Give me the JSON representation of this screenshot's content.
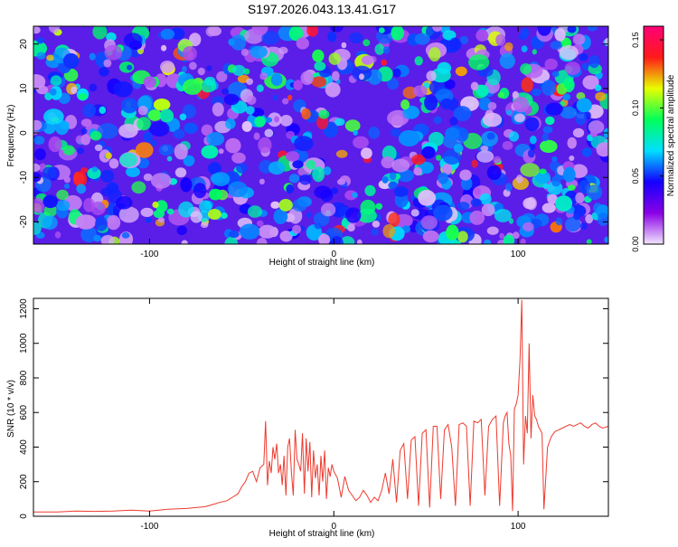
{
  "title": "S197.2026.043.13.41.G17",
  "chart_data": [
    {
      "type": "heatmap",
      "xlabel": "Height of straight line (km)",
      "ylabel": "Frequency (Hz)",
      "xlim": [
        -163,
        149
      ],
      "ylim": [
        -25,
        24
      ],
      "x_ticks": [
        -100,
        0,
        100
      ],
      "y_ticks": [
        -20,
        -10,
        0,
        10,
        20
      ],
      "colorbar": {
        "label": "Normalized spectral amplitude",
        "range": [
          0,
          0.16
        ],
        "ticks": [
          "0.00",
          "0.05",
          "0.10",
          "0.15"
        ],
        "colors": [
          "#f2e6ff",
          "#8a00e6",
          "#1400ff",
          "#00e0ff",
          "#00ff5a",
          "#e8ff00",
          "#ff1a1a",
          "#ff0077"
        ]
      }
    },
    {
      "type": "line",
      "xlabel": "Height of straight line (km)",
      "ylabel": "SNR (10 * v/v)",
      "xlim": [
        -163,
        149
      ],
      "ylim": [
        0,
        1260
      ],
      "x_ticks": [
        -100,
        0,
        100
      ],
      "y_ticks": [
        0,
        200,
        400,
        600,
        800,
        1000,
        1200
      ],
      "color": "#ee3a2e",
      "series": [
        {
          "x": [
            -163,
            -150,
            -140,
            -130,
            -120,
            -110,
            -100,
            -90,
            -80,
            -75,
            -70,
            -65,
            -62,
            -58,
            -55,
            -52,
            -50,
            -48,
            -46,
            -44,
            -42,
            -40,
            -38,
            -37,
            -36,
            -35,
            -34,
            -33,
            -32,
            -31,
            -30,
            -29,
            -28,
            -27,
            -26,
            -25,
            -24,
            -23,
            -22,
            -21,
            -20,
            -19,
            -18,
            -17,
            -16,
            -15,
            -14,
            -13,
            -12,
            -11,
            -10,
            -9,
            -8,
            -7,
            -6,
            -5,
            -4,
            -3,
            -2,
            -1,
            0,
            2,
            4,
            6,
            8,
            10,
            12,
            14,
            16,
            18,
            20,
            22,
            24,
            26,
            28,
            30,
            32,
            34,
            36,
            38,
            40,
            42,
            44,
            46,
            48,
            50,
            52,
            54,
            56,
            58,
            60,
            62,
            64,
            66,
            68,
            70,
            72,
            74,
            76,
            78,
            80,
            82,
            84,
            86,
            88,
            90,
            92,
            93,
            94,
            95,
            96,
            97,
            98,
            99,
            100,
            101,
            102,
            103,
            104,
            105,
            106,
            107,
            108,
            109,
            110,
            111,
            112,
            113,
            114,
            116,
            118,
            120,
            122,
            124,
            126,
            128,
            130,
            132,
            134,
            136,
            138,
            140,
            142,
            144,
            146,
            149
          ],
          "y": [
            25,
            25,
            30,
            28,
            30,
            35,
            30,
            40,
            45,
            50,
            55,
            70,
            80,
            90,
            110,
            130,
            170,
            200,
            250,
            260,
            200,
            280,
            300,
            550,
            180,
            320,
            250,
            400,
            330,
            420,
            250,
            300,
            180,
            350,
            120,
            400,
            450,
            250,
            120,
            500,
            330,
            300,
            260,
            480,
            130,
            450,
            260,
            430,
            110,
            380,
            220,
            300,
            120,
            350,
            200,
            380,
            100,
            280,
            230,
            300,
            260,
            220,
            110,
            230,
            150,
            120,
            90,
            110,
            150,
            120,
            80,
            110,
            90,
            150,
            250,
            130,
            330,
            80,
            380,
            420,
            100,
            440,
            460,
            60,
            480,
            500,
            50,
            520,
            520,
            100,
            500,
            530,
            400,
            60,
            530,
            540,
            520,
            60,
            550,
            540,
            560,
            120,
            520,
            560,
            580,
            60,
            540,
            580,
            600,
            420,
            350,
            30,
            620,
            650,
            700,
            900,
            1250,
            300,
            580,
            480,
            1000,
            450,
            700,
            580,
            560,
            520,
            500,
            480,
            40,
            400,
            460,
            490,
            500,
            510,
            520,
            530,
            520,
            530,
            540,
            520,
            510,
            530,
            540,
            520,
            510,
            520
          ]
        }
      ]
    }
  ]
}
